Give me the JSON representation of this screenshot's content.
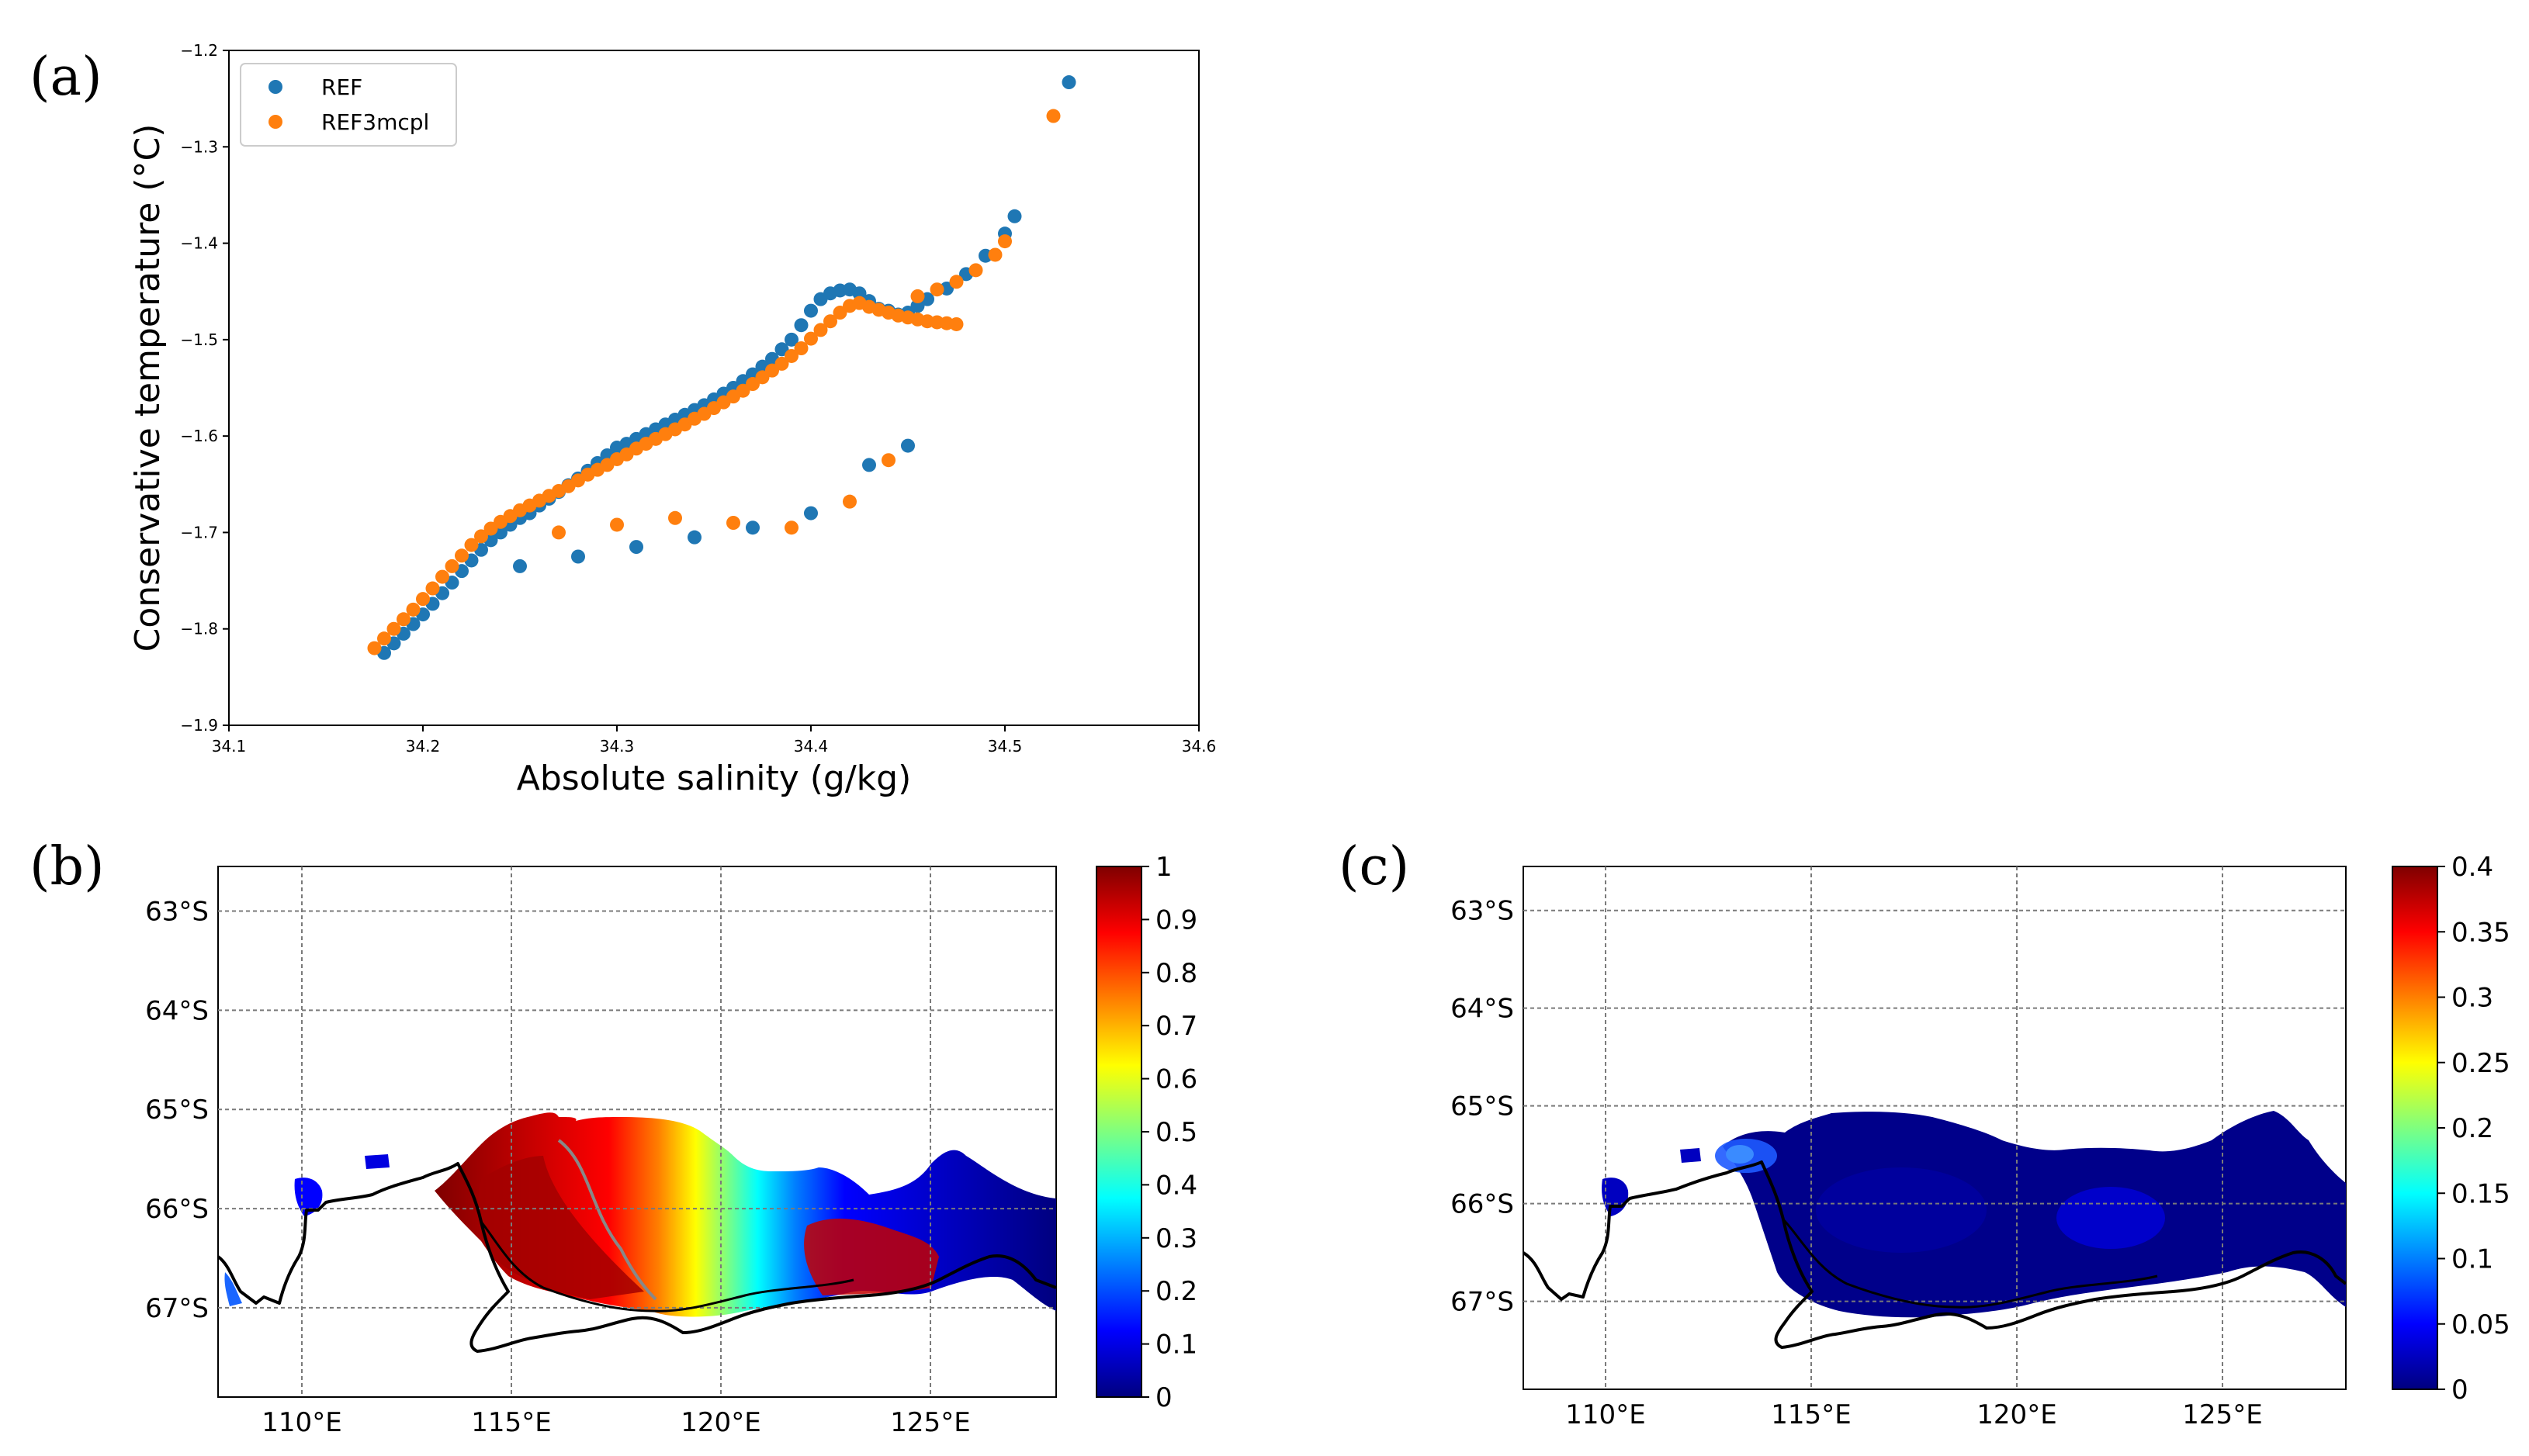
{
  "panels": {
    "a": "(a)",
    "b": "(b)",
    "c": "(c)"
  },
  "colors": {
    "ref": "#1f77b4",
    "ref3mcpl": "#ff7f0e",
    "coast": "#000000",
    "grid": "#7a7a7a",
    "jet": [
      "#00007f",
      "#0000ff",
      "#007fff",
      "#00ffff",
      "#7fff7f",
      "#ffff00",
      "#ff7f00",
      "#ff0000",
      "#7f0000"
    ]
  },
  "chart_data": [
    {
      "type": "scatter",
      "title": "",
      "xlabel": "Absolute salinity (g/kg)",
      "ylabel": "Conservative temperature (°C)",
      "xlim": [
        34.1,
        34.6
      ],
      "ylim": [
        -1.9,
        -1.2
      ],
      "xticks": [
        "34.1",
        "34.2",
        "34.3",
        "34.4",
        "34.5",
        "34.6"
      ],
      "yticks": [
        "−1.9",
        "−1.8",
        "−1.7",
        "−1.6",
        "−1.5",
        "−1.4",
        "−1.3",
        "−1.2"
      ],
      "legend": {
        "placement": "top-left",
        "entries": [
          "REF",
          "REF3mcpl"
        ]
      },
      "series": [
        {
          "name": "REF",
          "x": [
            34.18,
            34.185,
            34.19,
            34.195,
            34.2,
            34.205,
            34.21,
            34.215,
            34.22,
            34.225,
            34.23,
            34.235,
            34.24,
            34.245,
            34.25,
            34.255,
            34.26,
            34.265,
            34.27,
            34.275,
            34.28,
            34.285,
            34.29,
            34.295,
            34.3,
            34.305,
            34.31,
            34.315,
            34.32,
            34.325,
            34.33,
            34.335,
            34.34,
            34.345,
            34.35,
            34.355,
            34.36,
            34.365,
            34.37,
            34.375,
            34.38,
            34.385,
            34.39,
            34.395,
            34.4,
            34.405,
            34.41,
            34.415,
            34.42,
            34.425,
            34.43,
            34.435,
            34.44,
            34.445,
            34.45,
            34.455,
            34.46,
            34.47,
            34.48,
            34.49,
            34.5,
            34.505,
            34.25,
            34.28,
            34.31,
            34.34,
            34.37,
            34.4,
            34.43,
            34.45,
            34.533
          ],
          "y": [
            -1.825,
            -1.815,
            -1.805,
            -1.795,
            -1.785,
            -1.774,
            -1.763,
            -1.752,
            -1.74,
            -1.729,
            -1.718,
            -1.708,
            -1.7,
            -1.692,
            -1.685,
            -1.68,
            -1.672,
            -1.665,
            -1.658,
            -1.651,
            -1.644,
            -1.636,
            -1.628,
            -1.62,
            -1.612,
            -1.608,
            -1.603,
            -1.598,
            -1.593,
            -1.588,
            -1.583,
            -1.578,
            -1.573,
            -1.568,
            -1.562,
            -1.556,
            -1.55,
            -1.543,
            -1.536,
            -1.528,
            -1.52,
            -1.51,
            -1.5,
            -1.485,
            -1.47,
            -1.458,
            -1.452,
            -1.449,
            -1.448,
            -1.452,
            -1.46,
            -1.468,
            -1.47,
            -1.474,
            -1.472,
            -1.465,
            -1.458,
            -1.447,
            -1.432,
            -1.413,
            -1.39,
            -1.372,
            -1.735,
            -1.725,
            -1.715,
            -1.705,
            -1.695,
            -1.68,
            -1.63,
            -1.61,
            -1.233
          ]
        },
        {
          "name": "REF3mcpl",
          "x": [
            34.175,
            34.18,
            34.185,
            34.19,
            34.195,
            34.2,
            34.205,
            34.21,
            34.215,
            34.22,
            34.225,
            34.23,
            34.235,
            34.24,
            34.245,
            34.25,
            34.255,
            34.26,
            34.265,
            34.27,
            34.275,
            34.28,
            34.285,
            34.29,
            34.295,
            34.3,
            34.305,
            34.31,
            34.315,
            34.32,
            34.325,
            34.33,
            34.335,
            34.34,
            34.345,
            34.35,
            34.355,
            34.36,
            34.365,
            34.37,
            34.375,
            34.38,
            34.385,
            34.39,
            34.395,
            34.4,
            34.405,
            34.41,
            34.415,
            34.42,
            34.425,
            34.43,
            34.435,
            34.44,
            34.445,
            34.45,
            34.455,
            34.46,
            34.465,
            34.47,
            34.475,
            34.455,
            34.465,
            34.475,
            34.485,
            34.495,
            34.5,
            34.27,
            34.3,
            34.33,
            34.36,
            34.39,
            34.42,
            34.44,
            34.525
          ],
          "y": [
            -1.82,
            -1.81,
            -1.8,
            -1.79,
            -1.78,
            -1.769,
            -1.758,
            -1.746,
            -1.735,
            -1.724,
            -1.713,
            -1.704,
            -1.696,
            -1.689,
            -1.683,
            -1.677,
            -1.672,
            -1.667,
            -1.662,
            -1.657,
            -1.652,
            -1.646,
            -1.64,
            -1.635,
            -1.63,
            -1.624,
            -1.619,
            -1.613,
            -1.608,
            -1.603,
            -1.598,
            -1.593,
            -1.588,
            -1.582,
            -1.577,
            -1.571,
            -1.565,
            -1.559,
            -1.553,
            -1.546,
            -1.539,
            -1.532,
            -1.525,
            -1.517,
            -1.509,
            -1.499,
            -1.49,
            -1.481,
            -1.472,
            -1.465,
            -1.462,
            -1.466,
            -1.469,
            -1.472,
            -1.475,
            -1.477,
            -1.479,
            -1.481,
            -1.482,
            -1.483,
            -1.484,
            -1.455,
            -1.448,
            -1.44,
            -1.428,
            -1.412,
            -1.398,
            -1.7,
            -1.692,
            -1.685,
            -1.69,
            -1.695,
            -1.668,
            -1.625,
            -1.268
          ]
        }
      ]
    },
    {
      "type": "heatmap",
      "lon_ticks": [
        "110°E",
        "115°E",
        "120°E",
        "125°E"
      ],
      "lat_ticks": [
        "63°S",
        "64°S",
        "65°S",
        "66°S",
        "67°S"
      ],
      "lon_range": [
        108,
        128
      ],
      "lat_range": [
        -67.9,
        -62.55
      ],
      "colorbar": {
        "range": [
          0,
          1
        ],
        "ticks": [
          "0",
          "0.1",
          "0.2",
          "0.3",
          "0.4",
          "0.5",
          "0.6",
          "0.7",
          "0.8",
          "0.9",
          "1"
        ]
      }
    },
    {
      "type": "heatmap",
      "lon_ticks": [
        "110°E",
        "115°E",
        "120°E",
        "125°E"
      ],
      "lat_ticks": [
        "63°S",
        "64°S",
        "65°S",
        "66°S",
        "67°S"
      ],
      "lon_range": [
        108,
        128
      ],
      "lat_range": [
        -67.9,
        -62.55
      ],
      "colorbar": {
        "range": [
          0,
          0.4
        ],
        "ticks": [
          "0",
          "0.05",
          "0.1",
          "0.15",
          "0.2",
          "0.25",
          "0.3",
          "0.35",
          "0.4"
        ]
      }
    }
  ]
}
